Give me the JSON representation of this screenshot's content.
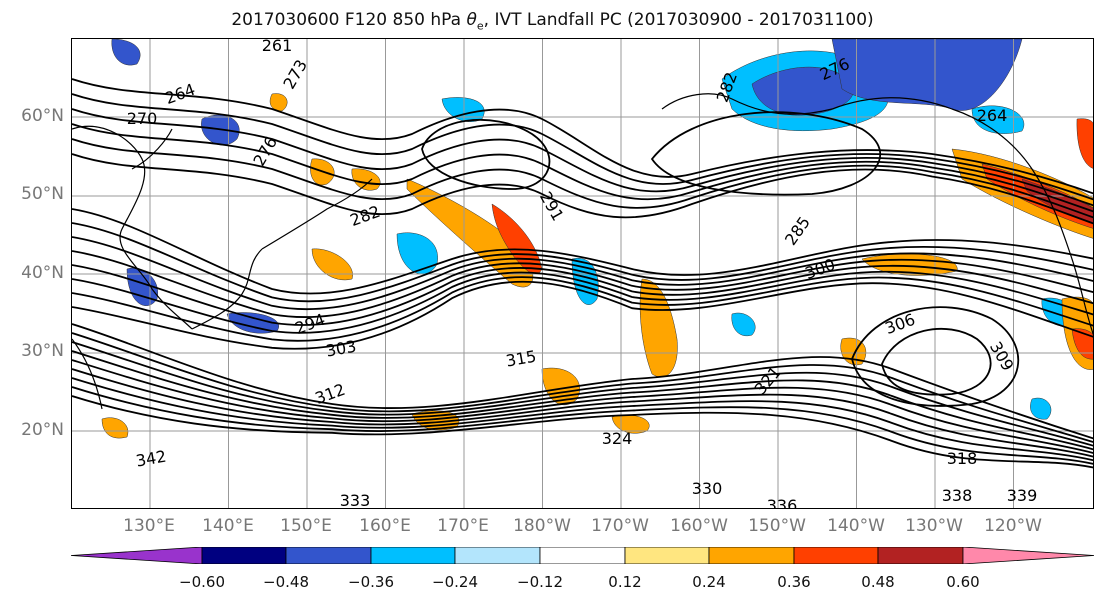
{
  "title": {
    "prefix": "2017030600 F120 850 hPa ",
    "theta": "θ",
    "sub": "e",
    "suffix": ", IVT Landfall PC (2017030900 - 2017031100)"
  },
  "lat_labels": [
    "60°N",
    "50°N",
    "40°N",
    "30°N",
    "20°N"
  ],
  "lon_labels": [
    "130°E",
    "140°E",
    "150°E",
    "160°E",
    "170°E",
    "180°W",
    "170°W",
    "160°W",
    "150°W",
    "140°W",
    "130°W",
    "120°W"
  ],
  "colorbar": {
    "tick_labels": [
      "−0.60",
      "−0.48",
      "−0.36",
      "−0.24",
      "−0.12",
      "0.12",
      "0.24",
      "0.36",
      "0.48",
      "0.60"
    ],
    "colors": [
      "#9933cc",
      "#000080",
      "#3355cc",
      "#00bfff",
      "#b3e5fc",
      "#ffffff",
      "#ffe680",
      "#ffa500",
      "#ff4000",
      "#b22222",
      "#ff88aa"
    ]
  },
  "contour_labels": [
    "261",
    "264",
    "270",
    "273",
    "276",
    "276",
    "282",
    "264",
    "291",
    "282",
    "285",
    "300",
    "306",
    "309",
    "294",
    "303",
    "312",
    "315",
    "321",
    "324",
    "318",
    "330",
    "333",
    "336",
    "338",
    "339",
    "342"
  ],
  "shading_colors": {
    "neg_light": "#00bfff",
    "neg_mid": "#3355cc",
    "pos_light": "#ffa500",
    "pos_mid": "#ff4000",
    "pos_strong": "#b22222"
  }
}
